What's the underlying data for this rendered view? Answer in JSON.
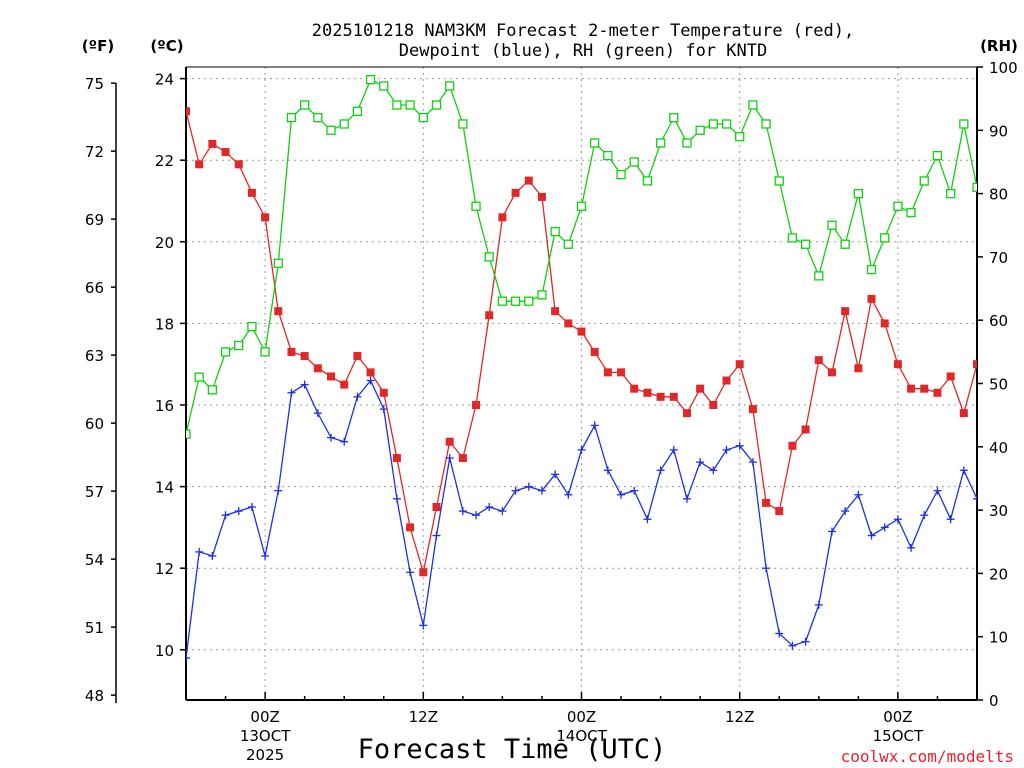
{
  "chart_data": {
    "type": "line",
    "title_line1": "2025101218 NAM3KM Forecast 2-meter Temperature (red),",
    "title_line2": "Dewpoint (blue), RH (green) for KNTD",
    "xlabel": "Forecast Time (UTC)",
    "credit": "coolwx.com/modelts",
    "unit_f": "(ºF)",
    "unit_c": "(ºC)",
    "unit_rh": "(RH)",
    "grid": true,
    "x_hours_range": [
      0,
      60
    ],
    "c_axis": {
      "range": [
        8.5,
        24.0
      ],
      "ticks": [
        "24",
        "22",
        "20",
        "18",
        "16",
        "14",
        "12",
        "10"
      ],
      "tick_values": [
        24,
        22,
        20,
        18,
        16,
        14,
        12,
        10
      ]
    },
    "f_axis": {
      "ticks": [
        "75",
        "72",
        "69",
        "66",
        "63",
        "60",
        "57",
        "54",
        "51",
        "48"
      ],
      "tick_values": [
        75,
        72,
        69,
        66,
        63,
        60,
        57,
        54,
        51,
        48
      ]
    },
    "rh_axis": {
      "range": [
        0,
        100
      ],
      "ticks": [
        "100",
        "90",
        "80",
        "70",
        "60",
        "50",
        "40",
        "30",
        "20",
        "10",
        "0"
      ],
      "tick_values": [
        100,
        90,
        80,
        70,
        60,
        50,
        40,
        30,
        20,
        10,
        0
      ]
    },
    "x_ticks": [
      {
        "hour": 6,
        "line1": "00Z",
        "line2": "13OCT",
        "line3": "2025"
      },
      {
        "hour": 18,
        "line1": "12Z",
        "line2": "",
        "line3": ""
      },
      {
        "hour": 30,
        "line1": "00Z",
        "line2": "14OCT",
        "line3": ""
      },
      {
        "hour": 42,
        "line1": "12Z",
        "line2": "",
        "line3": ""
      },
      {
        "hour": 54,
        "line1": "00Z",
        "line2": "15OCT",
        "line3": ""
      }
    ],
    "series": [
      {
        "name": "2-meter Temperature",
        "unit": "C",
        "color": "#e02828",
        "marker": "filled-square",
        "values": [
          23.2,
          21.9,
          22.4,
          22.2,
          21.9,
          21.2,
          20.6,
          18.3,
          17.3,
          17.2,
          16.9,
          16.7,
          16.5,
          17.2,
          16.8,
          16.3,
          14.7,
          13.0,
          11.9,
          13.5,
          15.1,
          14.7,
          16.0,
          18.2,
          20.6,
          21.2,
          21.5,
          21.1,
          18.3,
          18.0,
          17.8,
          17.3,
          16.8,
          16.8,
          16.4,
          16.3,
          16.2,
          16.2,
          15.8,
          16.4,
          16.0,
          16.6,
          17.0,
          15.9,
          13.6,
          13.4,
          15.0,
          15.4,
          17.1,
          16.8,
          18.3,
          16.9,
          18.6,
          18.0,
          17.0,
          16.4,
          16.4,
          16.3,
          16.7,
          15.8,
          17.0
        ],
        "label": "Temperature (red)"
      },
      {
        "name": "Dewpoint",
        "unit": "C",
        "color": "#2030e0",
        "marker": "plus",
        "values": [
          9.8,
          12.4,
          12.3,
          13.3,
          13.4,
          13.5,
          12.3,
          13.9,
          16.3,
          16.5,
          15.8,
          15.2,
          15.1,
          16.2,
          16.6,
          15.9,
          13.7,
          11.9,
          10.6,
          12.8,
          14.7,
          13.4,
          13.3,
          13.5,
          13.4,
          13.9,
          14.0,
          13.9,
          14.3,
          13.8,
          14.9,
          15.5,
          14.4,
          13.8,
          13.9,
          13.2,
          14.4,
          14.9,
          13.7,
          14.6,
          14.4,
          14.9,
          15.0,
          14.6,
          12.0,
          10.4,
          10.1,
          10.2,
          11.1,
          12.9,
          13.4,
          13.8,
          12.8,
          13.0,
          13.2,
          12.5,
          13.3,
          13.9,
          13.2,
          14.4,
          13.7
        ],
        "label": "Dewpoint (blue)"
      },
      {
        "name": "Relative Humidity",
        "unit": "%",
        "color": "#10d010",
        "marker": "open-square",
        "values": [
          42,
          51,
          49,
          55,
          56,
          59,
          55,
          69,
          92,
          94,
          92,
          90,
          91,
          93,
          98,
          97,
          94,
          94,
          92,
          94,
          97,
          91,
          78,
          70,
          63,
          63,
          63,
          64,
          74,
          72,
          78,
          88,
          86,
          83,
          85,
          82,
          88,
          92,
          88,
          90,
          91,
          91,
          89,
          94,
          91,
          82,
          73,
          72,
          67,
          75,
          72,
          80,
          68,
          73,
          78,
          77,
          82,
          86,
          80,
          91,
          81
        ],
        "label": "RH (green)"
      }
    ]
  }
}
